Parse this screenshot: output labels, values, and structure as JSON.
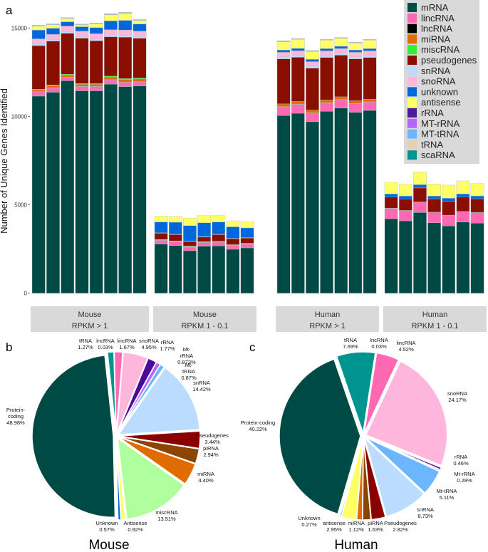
{
  "panel_labels": {
    "a": "a",
    "b": "b",
    "c": "c"
  },
  "chart_data": [
    {
      "type": "bar",
      "stacked": true,
      "ylabel": "Number of Unique Genes Identified",
      "ylim": [
        0,
        16000
      ],
      "yticks": [
        0,
        5000,
        10000,
        15000
      ],
      "grid": false,
      "legend_placement": "top-right",
      "categories_order": [
        "mRNA",
        "lincRNA",
        "lncRNA",
        "miRNA",
        "miscRNA",
        "pseudogenes",
        "snRNA",
        "snoRNA",
        "unknown",
        "antisense",
        "rRNA",
        "MT-rRNA",
        "MT-tRNA",
        "tRNA",
        "scaRNA"
      ],
      "colors": {
        "mRNA": "#004a45",
        "lincRNA": "#ff69b4",
        "lncRNA": "#000000",
        "miRNA": "#e06c00",
        "miscRNA": "#33ee33",
        "pseudogenes": "#8b0f00",
        "snRNA": "#bcdcff",
        "snoRNA": "#ffb6dc",
        "unknown": "#0068dc",
        "antisense": "#ffff66",
        "rRNA": "#4b1a99",
        "MT-rRNA": "#b566ff",
        "MT-tRNA": "#6cb6ff",
        "tRNA": "#e6d1b1",
        "scaRNA": "#009490"
      },
      "facets": [
        {
          "line1": "Mouse",
          "line2": "RPKM > 1",
          "bars": [
            [
              11160,
              230,
              20,
              100,
              40,
              2470,
              100,
              280,
              500,
              220,
              10,
              2,
              20,
              10,
              10
            ],
            [
              11380,
              230,
              20,
              120,
              40,
              2480,
              100,
              280,
              350,
              200,
              10,
              2,
              20,
              10,
              10
            ],
            [
              12030,
              180,
              20,
              120,
              50,
              2320,
              100,
              300,
              250,
              180,
              10,
              2,
              20,
              10,
              10
            ],
            [
              11460,
              230,
              20,
              120,
              40,
              2570,
              100,
              300,
              250,
              100,
              10,
              2,
              20,
              10,
              10
            ],
            [
              11460,
              230,
              20,
              120,
              40,
              2420,
              100,
              300,
              350,
              200,
              10,
              2,
              20,
              10,
              10
            ],
            [
              11840,
              230,
              20,
              150,
              50,
              2230,
              100,
              300,
              500,
              350,
              10,
              2,
              20,
              10,
              10
            ],
            [
              11700,
              230,
              20,
              150,
              50,
              2350,
              100,
              300,
              550,
              400,
              10,
              2,
              20,
              10,
              10
            ],
            [
              11730,
              230,
              20,
              150,
              50,
              2260,
              100,
              300,
              400,
              200,
              10,
              2,
              20,
              10,
              10
            ]
          ]
        },
        {
          "line1": "Mouse",
          "line2": "RPKM 1 - 0.1",
          "bars": [
            [
              2780,
              200,
              20,
              20,
              20,
              360,
              0,
              20,
              610,
              340,
              0,
              0,
              0,
              0,
              0
            ],
            [
              2700,
              200,
              20,
              20,
              20,
              360,
              0,
              20,
              680,
              330,
              0,
              0,
              0,
              0,
              0
            ],
            [
              2410,
              200,
              20,
              20,
              20,
              260,
              0,
              20,
              880,
              430,
              0,
              0,
              0,
              0,
              0
            ],
            [
              2660,
              200,
              20,
              20,
              20,
              260,
              0,
              20,
              790,
              410,
              0,
              0,
              0,
              0,
              0
            ],
            [
              2680,
              200,
              20,
              20,
              20,
              380,
              0,
              20,
              690,
              370,
              0,
              0,
              0,
              0,
              0
            ],
            [
              2490,
              200,
              20,
              20,
              20,
              340,
              0,
              20,
              650,
              340,
              0,
              0,
              0,
              0,
              0
            ],
            [
              2570,
              200,
              20,
              20,
              20,
              300,
              0,
              20,
              550,
              360,
              0,
              0,
              0,
              0,
              0
            ]
          ]
        },
        {
          "line1": "Human",
          "line2": "RPKM > 1",
          "bars": [
            [
              10060,
              490,
              20,
              150,
              0,
              2550,
              120,
              250,
              130,
              470,
              10,
              5,
              20,
              5,
              10
            ],
            [
              10190,
              500,
              20,
              150,
              0,
              2500,
              120,
              250,
              130,
              510,
              10,
              5,
              20,
              5,
              10
            ],
            [
              9710,
              490,
              20,
              150,
              0,
              2370,
              120,
              250,
              130,
              450,
              10,
              5,
              20,
              5,
              10
            ],
            [
              10300,
              470,
              20,
              150,
              0,
              2410,
              120,
              250,
              130,
              480,
              10,
              5,
              20,
              5,
              10
            ],
            [
              10480,
              470,
              20,
              150,
              0,
              2360,
              120,
              250,
              130,
              450,
              10,
              5,
              20,
              5,
              10
            ],
            [
              10240,
              490,
              20,
              150,
              0,
              2370,
              120,
              250,
              130,
              400,
              10,
              5,
              20,
              5,
              10
            ],
            [
              10350,
              470,
              20,
              150,
              0,
              2360,
              120,
              250,
              130,
              480,
              10,
              5,
              20,
              5,
              10
            ]
          ]
        },
        {
          "line1": "Human",
          "line2": "RPKM 1 - 0.1",
          "bars": [
            [
              4220,
              580,
              20,
              0,
              0,
              620,
              0,
              0,
              180,
              660,
              0,
              0,
              0,
              0,
              0
            ],
            [
              4100,
              570,
              20,
              0,
              0,
              650,
              0,
              0,
              160,
              670,
              0,
              0,
              0,
              0,
              0
            ],
            [
              4570,
              580,
              20,
              0,
              0,
              790,
              0,
              0,
              190,
              710,
              0,
              0,
              0,
              0,
              0
            ],
            [
              3990,
              580,
              20,
              0,
              0,
              760,
              0,
              0,
              150,
              690,
              0,
              0,
              0,
              0,
              0
            ],
            [
              3810,
              590,
              20,
              0,
              0,
              780,
              0,
              0,
              180,
              740,
              0,
              0,
              0,
              0,
              0
            ],
            [
              4030,
              580,
              20,
              0,
              0,
              810,
              0,
              0,
              180,
              740,
              0,
              0,
              0,
              0,
              0
            ],
            [
              3970,
              590,
              20,
              0,
              0,
              770,
              0,
              0,
              160,
              700,
              0,
              0,
              0,
              0,
              0
            ]
          ]
        }
      ]
    },
    {
      "type": "pie",
      "title": "Mouse",
      "exploded": true,
      "slices": [
        {
          "label": "tRNA",
          "value": 1.27,
          "pct": "1.27%",
          "color": "#009490"
        },
        {
          "label": "lncRNA",
          "value": 0.03,
          "pct": "0.03%",
          "color": "#000000"
        },
        {
          "label": "lincRNA",
          "value": 1.67,
          "pct": "1.67%",
          "color": "#ff69b4"
        },
        {
          "label": "snoRNA",
          "value": 4.95,
          "pct": "4.95%",
          "color": "#ffb6dc"
        },
        {
          "label": "rRNA",
          "value": 1.77,
          "pct": "1.77%",
          "color": "#4b0a99"
        },
        {
          "label": "Mt-rRNA",
          "value": 0.873,
          "pct": "0.873%",
          "color": "#b566ff"
        },
        {
          "label": "Mt-tRNA",
          "value": 0.87,
          "pct": "0.87%",
          "color": "#6cb6ff"
        },
        {
          "label": "snRNA",
          "value": 14.42,
          "pct": "14.42%",
          "color": "#bcdcff"
        },
        {
          "label": "Pseudogenes",
          "value": 3.44,
          "pct": "3.44%",
          "color": "#8b0000"
        },
        {
          "label": "piRNA",
          "value": 2.94,
          "pct": "2.94%",
          "color": "#8b4500"
        },
        {
          "label": "miRNA",
          "value": 4.4,
          "pct": "4.40%",
          "color": "#e06c00"
        },
        {
          "label": "miscRNA",
          "value": 13.51,
          "pct": "13.51%",
          "color": "#b0ff9e"
        },
        {
          "label": "Antisense",
          "value": 0.92,
          "pct": "0.92%",
          "color": "#ffff66"
        },
        {
          "label": "Unknown",
          "value": 0.57,
          "pct": "0.57%",
          "color": "#0068dc"
        },
        {
          "label": "Protein-coding",
          "value": 48.98,
          "pct": "48.98%",
          "color": "#004a45"
        }
      ]
    },
    {
      "type": "pie",
      "title": "Human",
      "exploded": true,
      "slices": [
        {
          "label": "tRNA",
          "value": 7.69,
          "pct": "7.69%",
          "color": "#009490"
        },
        {
          "label": "lncRNA",
          "value": 0.03,
          "pct": "0.03%",
          "color": "#000000"
        },
        {
          "label": "lincRNA",
          "value": 4.52,
          "pct": "4.52%",
          "color": "#ff69b4"
        },
        {
          "label": "snoRNA",
          "value": 24.17,
          "pct": "24.17%",
          "color": "#ffb6dc"
        },
        {
          "label": "rRNA",
          "value": 0.46,
          "pct": "0.46%",
          "color": "#4b0a99"
        },
        {
          "label": "Mt-rRNA",
          "value": 0.28,
          "pct": "0.28%",
          "color": "#b566ff"
        },
        {
          "label": "Mt-tRNA",
          "value": 5.11,
          "pct": "5.11%",
          "color": "#6cb6ff"
        },
        {
          "label": "snRNA",
          "value": 8.73,
          "pct": "8.73%",
          "color": "#bcdcff"
        },
        {
          "label": "Pseudogenes",
          "value": 2.82,
          "pct": "2.82%",
          "color": "#8b0000"
        },
        {
          "label": "piRNA",
          "value": 1.63,
          "pct": "1.63%",
          "color": "#8b4500"
        },
        {
          "label": "miRNA",
          "value": 1.12,
          "pct": "1.12%",
          "color": "#e06c00"
        },
        {
          "label": "antisense",
          "value": 2.95,
          "pct": "2.95%",
          "color": "#ffff66"
        },
        {
          "label": "Unknown",
          "value": 0.27,
          "pct": "0.27%",
          "color": "#0068dc"
        },
        {
          "label": "Protein-coding",
          "value": 40.22,
          "pct": "40.22%",
          "color": "#004a45"
        }
      ]
    }
  ]
}
